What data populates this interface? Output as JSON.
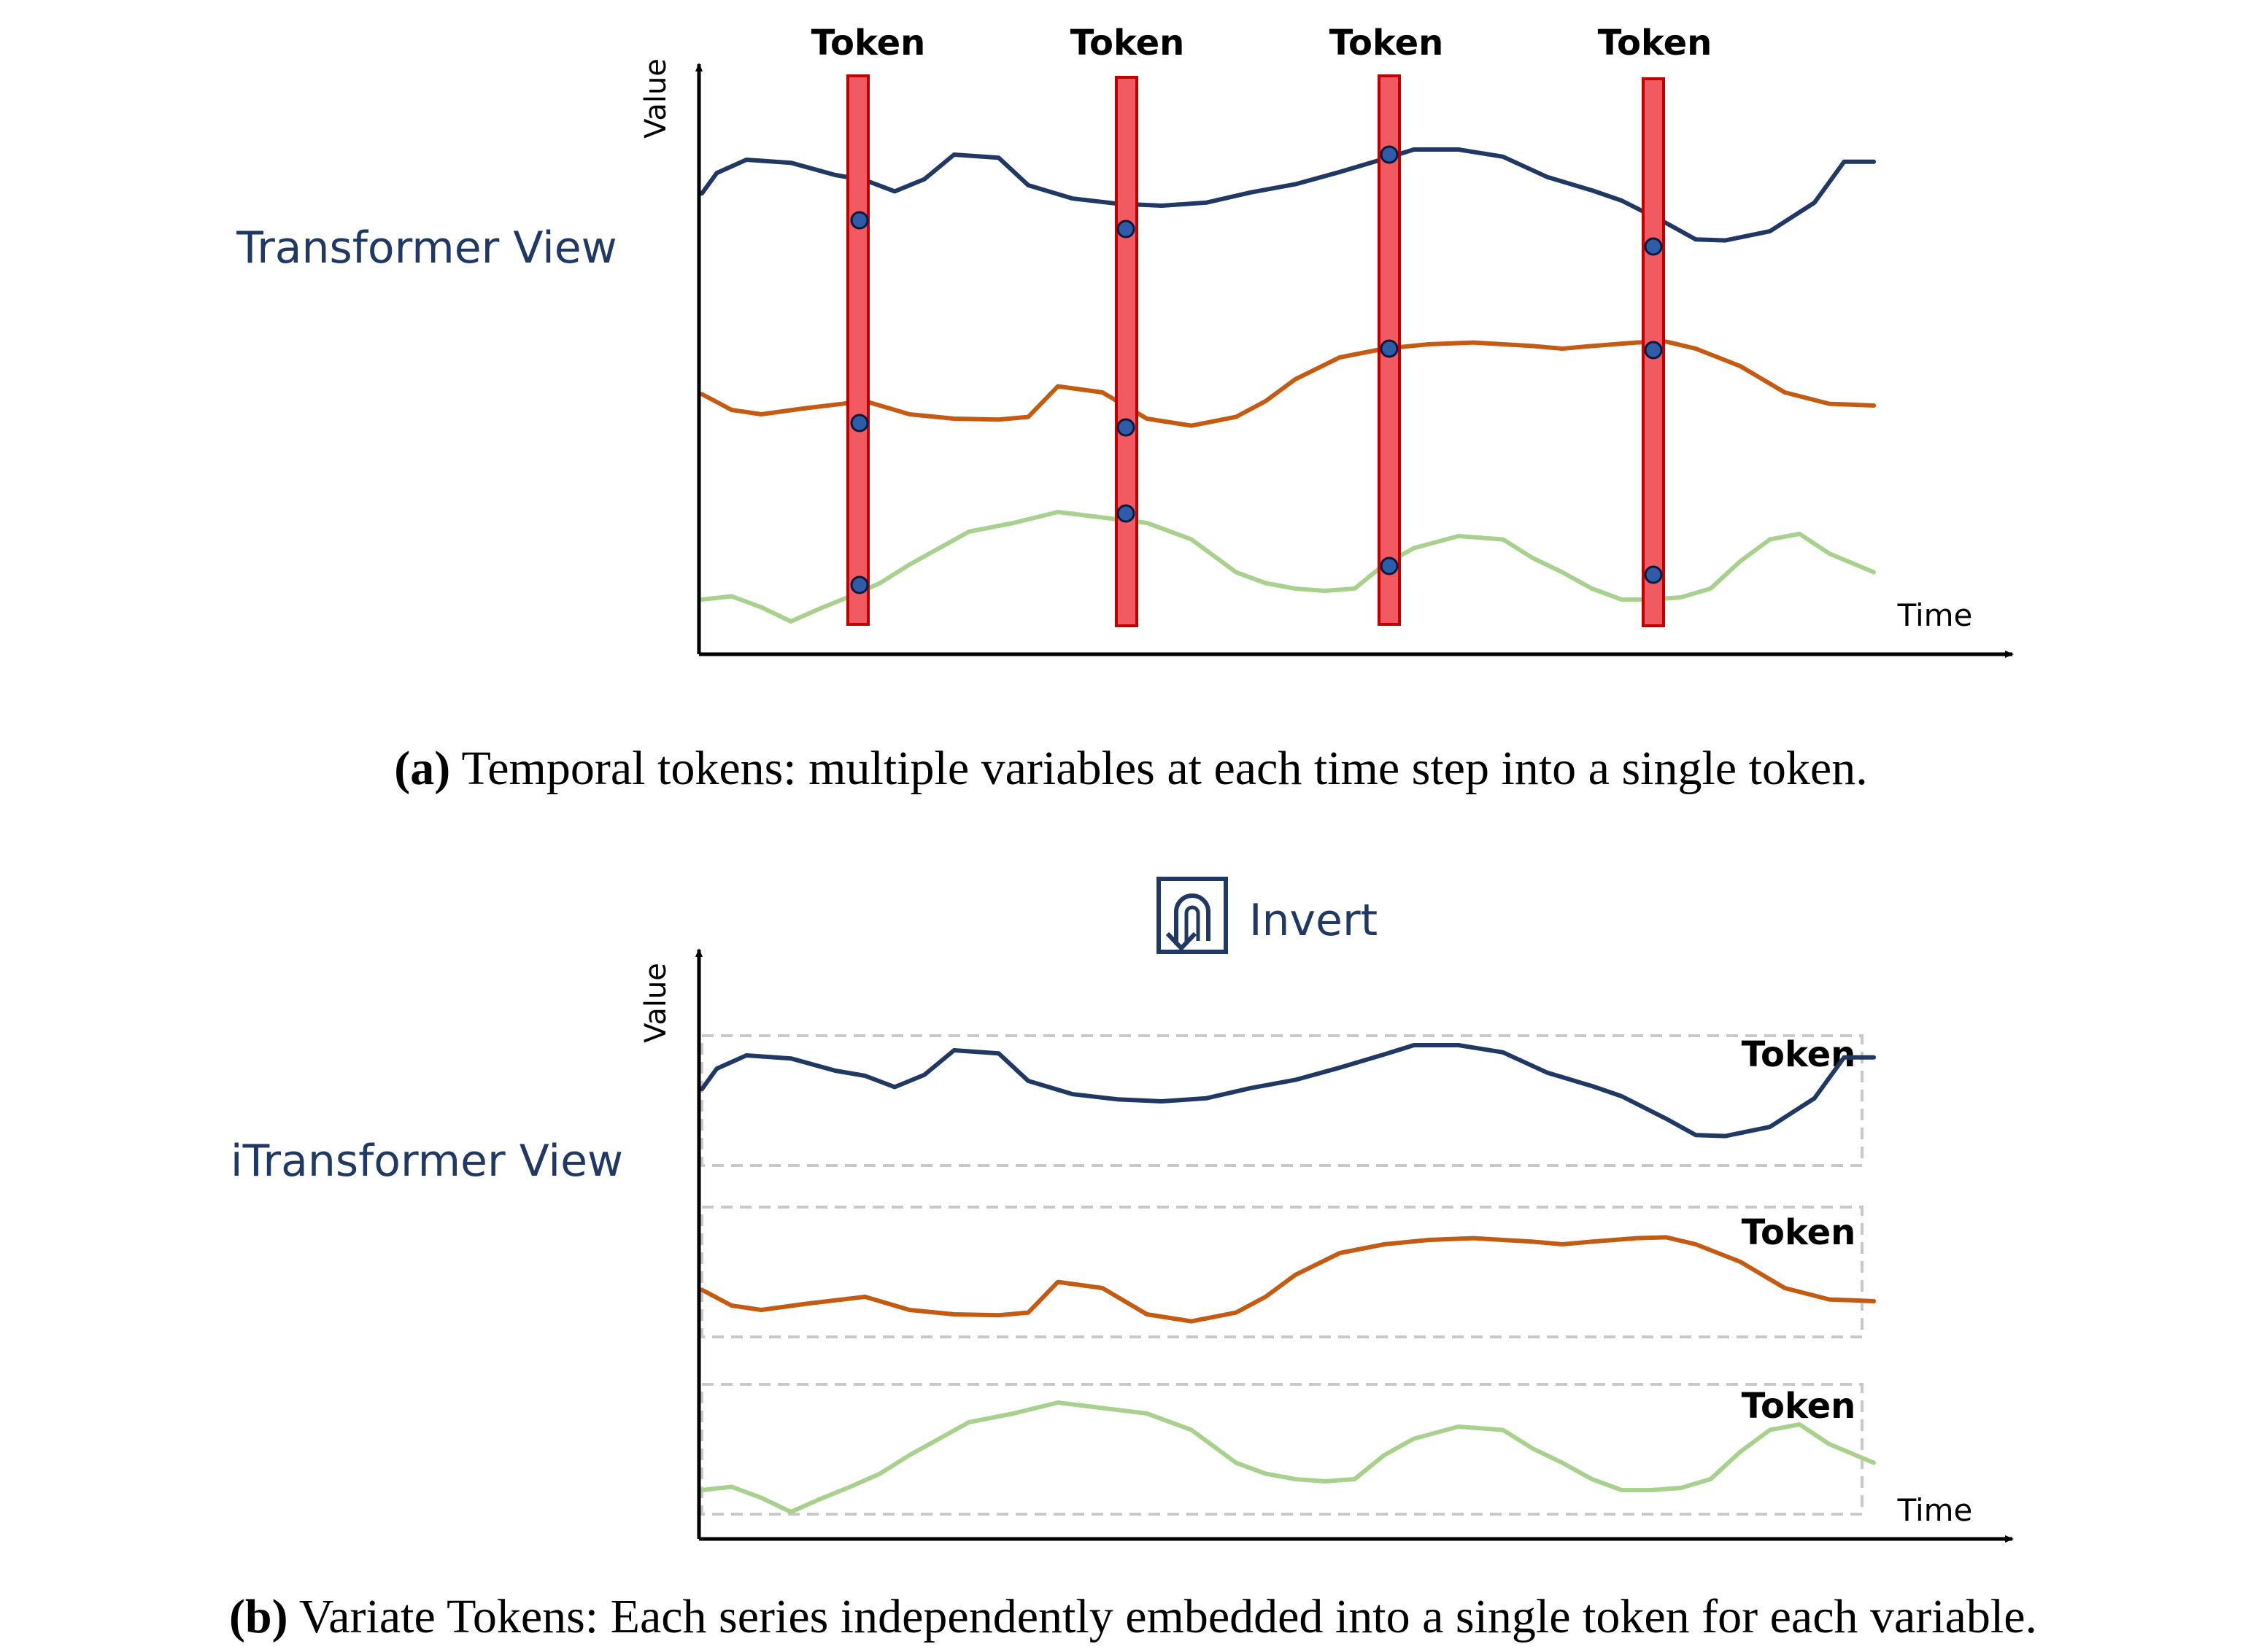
{
  "colors": {
    "series_top": "#1f3864",
    "series_mid": "#c55a11",
    "series_bottom": "#a9d18e",
    "token_bar": "#f05a60",
    "token_border": "#c00000",
    "dot": "#2e5ca8",
    "view_label": "#1f3864",
    "box_dashed": "#c8c8c8"
  },
  "panel_a": {
    "view_label": "Transformer View",
    "y_axis_label": "Value",
    "x_axis_label": "Time",
    "token_labels": [
      "Token",
      "Token",
      "Token",
      "Token"
    ],
    "caption_tag": "(a)",
    "caption_text": " Temporal tokens: multiple variables at each time step into a single token."
  },
  "panel_b": {
    "invert_label": "Invert",
    "invert_icon": "u-turn-arrow-icon",
    "view_label": "iTransformer View",
    "y_axis_label": "Value",
    "x_axis_label": "Time",
    "token_labels": [
      "Token",
      "Token",
      "Token"
    ],
    "caption_tag": "(b)",
    "caption_text": " Variate Tokens: Each series independently embedded into a single token for each variable."
  },
  "series_shapes": {
    "top": [
      [
        0.0,
        0.62
      ],
      [
        0.01,
        0.82
      ],
      [
        0.03,
        0.95
      ],
      [
        0.06,
        0.92
      ],
      [
        0.09,
        0.8
      ],
      [
        0.11,
        0.75
      ],
      [
        0.13,
        0.64
      ],
      [
        0.15,
        0.76
      ],
      [
        0.17,
        1.0
      ],
      [
        0.2,
        0.97
      ],
      [
        0.22,
        0.7
      ],
      [
        0.25,
        0.57
      ],
      [
        0.28,
        0.52
      ],
      [
        0.31,
        0.5
      ],
      [
        0.34,
        0.53
      ],
      [
        0.37,
        0.63
      ],
      [
        0.4,
        0.71
      ],
      [
        0.43,
        0.83
      ],
      [
        0.46,
        0.96
      ],
      [
        0.48,
        1.05
      ],
      [
        0.51,
        1.05
      ],
      [
        0.54,
        0.98
      ],
      [
        0.57,
        0.78
      ],
      [
        0.6,
        0.65
      ],
      [
        0.62,
        0.55
      ],
      [
        0.65,
        0.33
      ],
      [
        0.67,
        0.17
      ],
      [
        0.69,
        0.16
      ],
      [
        0.72,
        0.25
      ],
      [
        0.75,
        0.53
      ],
      [
        0.77,
        0.93
      ],
      [
        0.79,
        0.93
      ]
    ],
    "middle": [
      [
        0.0,
        0.43
      ],
      [
        0.02,
        0.25
      ],
      [
        0.04,
        0.2
      ],
      [
        0.07,
        0.27
      ],
      [
        0.11,
        0.35
      ],
      [
        0.14,
        0.2
      ],
      [
        0.17,
        0.15
      ],
      [
        0.2,
        0.14
      ],
      [
        0.22,
        0.17
      ],
      [
        0.24,
        0.52
      ],
      [
        0.27,
        0.45
      ],
      [
        0.3,
        0.15
      ],
      [
        0.33,
        0.07
      ],
      [
        0.36,
        0.17
      ],
      [
        0.38,
        0.35
      ],
      [
        0.4,
        0.6
      ],
      [
        0.43,
        0.85
      ],
      [
        0.46,
        0.95
      ],
      [
        0.49,
        1.0
      ],
      [
        0.52,
        1.02
      ],
      [
        0.54,
        1.0
      ],
      [
        0.56,
        0.98
      ],
      [
        0.58,
        0.95
      ],
      [
        0.6,
        0.98
      ],
      [
        0.63,
        1.02
      ],
      [
        0.65,
        1.03
      ],
      [
        0.67,
        0.95
      ],
      [
        0.7,
        0.75
      ],
      [
        0.73,
        0.45
      ],
      [
        0.76,
        0.32
      ],
      [
        0.79,
        0.3
      ]
    ],
    "bottom": [
      [
        0.0,
        0.2
      ],
      [
        0.02,
        0.23
      ],
      [
        0.04,
        0.13
      ],
      [
        0.06,
        0.0
      ],
      [
        0.08,
        0.12
      ],
      [
        0.1,
        0.23
      ],
      [
        0.12,
        0.35
      ],
      [
        0.14,
        0.52
      ],
      [
        0.16,
        0.67
      ],
      [
        0.18,
        0.82
      ],
      [
        0.21,
        0.9
      ],
      [
        0.24,
        1.0
      ],
      [
        0.27,
        0.95
      ],
      [
        0.3,
        0.9
      ],
      [
        0.33,
        0.75
      ],
      [
        0.36,
        0.45
      ],
      [
        0.38,
        0.35
      ],
      [
        0.4,
        0.3
      ],
      [
        0.42,
        0.28
      ],
      [
        0.44,
        0.3
      ],
      [
        0.46,
        0.52
      ],
      [
        0.48,
        0.67
      ],
      [
        0.51,
        0.78
      ],
      [
        0.54,
        0.75
      ],
      [
        0.56,
        0.58
      ],
      [
        0.58,
        0.45
      ],
      [
        0.6,
        0.3
      ],
      [
        0.62,
        0.2
      ],
      [
        0.64,
        0.2
      ],
      [
        0.66,
        0.22
      ],
      [
        0.68,
        0.3
      ],
      [
        0.7,
        0.55
      ],
      [
        0.72,
        0.75
      ],
      [
        0.74,
        0.8
      ],
      [
        0.76,
        0.62
      ],
      [
        0.79,
        0.45
      ]
    ]
  }
}
